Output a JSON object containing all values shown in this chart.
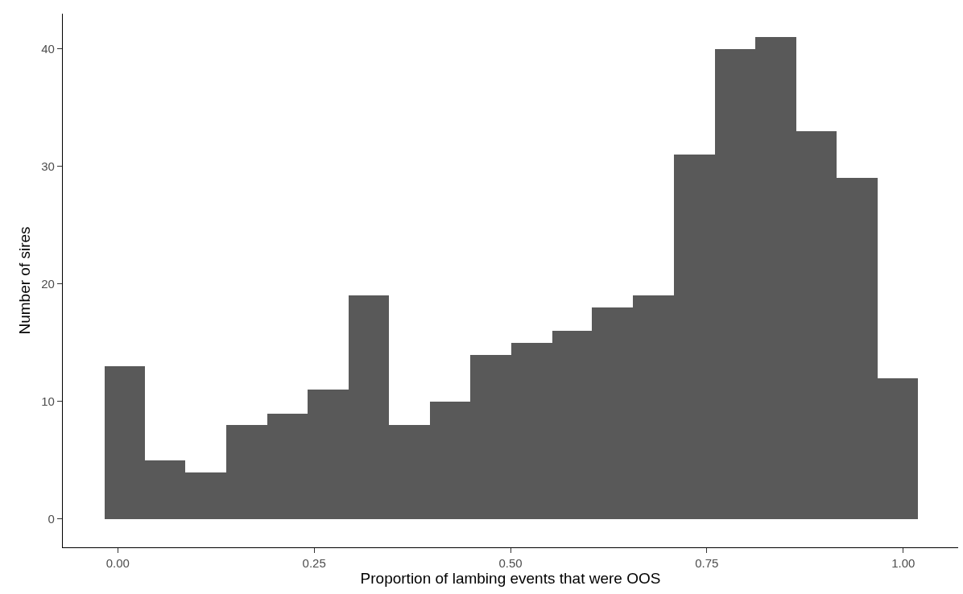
{
  "chart_data": {
    "type": "histogram",
    "xlabel": "Proportion of lambing events that were OOS",
    "ylabel": "Number of sires",
    "bins": [
      -0.017,
      0.035,
      0.086,
      0.138,
      0.19,
      0.242,
      0.294,
      0.345,
      0.397,
      0.449,
      0.501,
      0.553,
      0.604,
      0.656,
      0.708,
      0.76,
      0.812,
      0.864,
      0.915,
      0.967,
      1.019
    ],
    "values": [
      13,
      5,
      4,
      8,
      9,
      11,
      19,
      8,
      10,
      14,
      15,
      16,
      18,
      19,
      31,
      40,
      41,
      33,
      29,
      12
    ],
    "color": "#595959",
    "xlim": [
      -0.07,
      1.07
    ],
    "ylim": [
      -2.4,
      43
    ],
    "xticks": [
      {
        "value": 0,
        "label": "0.00"
      },
      {
        "value": 0.25,
        "label": "0.25"
      },
      {
        "value": 0.5,
        "label": "0.50"
      },
      {
        "value": 0.75,
        "label": "0.75"
      },
      {
        "value": 1,
        "label": "1.00"
      }
    ],
    "yticks": [
      0,
      10,
      20,
      30,
      40
    ],
    "grid": false,
    "legend": false
  }
}
